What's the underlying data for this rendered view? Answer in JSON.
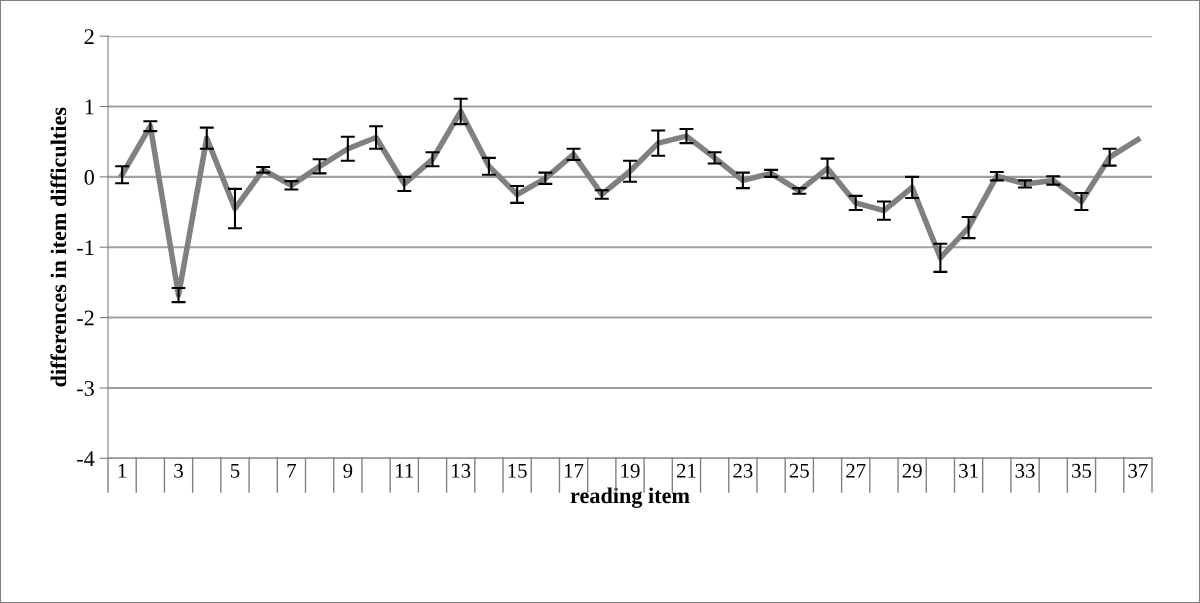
{
  "chart_data": {
    "type": "line",
    "xlabel": "reading item",
    "ylabel": "differences in item difficulties",
    "categories": [
      "1",
      null,
      "3",
      null,
      "5",
      null,
      "7",
      null,
      "9",
      null,
      "11",
      null,
      "13",
      null,
      "15",
      null,
      "17",
      null,
      "19",
      null,
      "21",
      null,
      "23",
      null,
      "25",
      null,
      "27",
      null,
      "29",
      null,
      "31",
      null,
      "33",
      null,
      "35",
      null,
      "37"
    ],
    "series": [
      {
        "color": "#808080",
        "values": [
          0.03,
          0.72,
          -1.68,
          0.55,
          -0.45,
          0.1,
          -0.12,
          0.15,
          0.4,
          0.56,
          -0.1,
          0.25,
          0.93,
          0.15,
          -0.25,
          -0.02,
          0.32,
          -0.25,
          0.08,
          0.48,
          0.58,
          0.27,
          -0.05,
          0.05,
          -0.2,
          0.12,
          -0.37,
          -0.48,
          -0.15,
          -1.15,
          -0.72,
          0.01,
          -0.1,
          -0.05,
          -0.35,
          0.28,
          0.53
        ],
        "errors": [
          0.12,
          0.07,
          0.1,
          0.15,
          0.28,
          0.04,
          0.06,
          0.1,
          0.17,
          0.16,
          0.1,
          0.1,
          0.18,
          0.12,
          0.12,
          0.08,
          0.08,
          0.06,
          0.15,
          0.18,
          0.1,
          0.08,
          0.11,
          0.05,
          0.04,
          0.14,
          0.1,
          0.13,
          0.15,
          0.2,
          0.15,
          0.06,
          0.05,
          0.06,
          0.12,
          0.12,
          null
        ]
      }
    ],
    "ylim": [
      -4,
      2
    ],
    "yticks": [
      -4,
      -3,
      -2,
      -1,
      0,
      1,
      2
    ],
    "grid": "y",
    "marker": "none",
    "line_style": "solid",
    "legend": false
  }
}
